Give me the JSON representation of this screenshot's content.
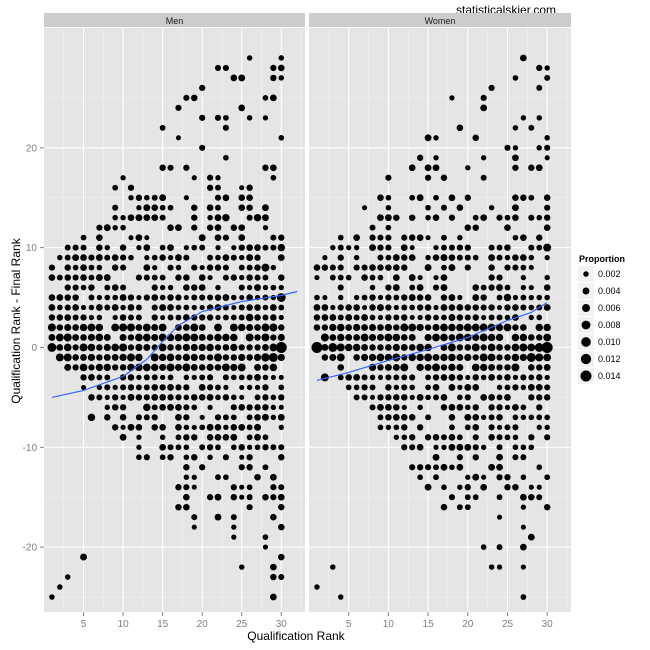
{
  "watermark": "statisticalskier.com",
  "chart_data": {
    "type": "scatter",
    "xlabel": "Qualification Rank",
    "ylabel": "Qualification Rank - Final Rank",
    "x_ticks": [
      5,
      10,
      15,
      20,
      25,
      30
    ],
    "y_ticks": [
      -20,
      -10,
      0,
      10,
      20
    ],
    "xlim": [
      0,
      33
    ],
    "ylim": [
      -26.5,
      32
    ],
    "grid": true,
    "size_legend": {
      "title": "Proportion",
      "values": [
        0.002,
        0.004,
        0.006,
        0.008,
        0.01,
        0.012,
        0.014
      ],
      "labels": [
        "0.002",
        "0.004",
        "0.006",
        "0.008",
        "0.010",
        "0.012",
        "0.014"
      ],
      "placement": "right"
    },
    "colors": {
      "panel": "#e5e5e5",
      "strip": "#cccccc",
      "grid": "#ffffff",
      "point": "#000000",
      "smooth": "#3366ff"
    },
    "panels": [
      {
        "name": "Men",
        "smooth": {
          "x": [
            1,
            5,
            10,
            13,
            15,
            17,
            20,
            25,
            30,
            32
          ],
          "y": [
            -5.0,
            -4.3,
            -2.9,
            -1.2,
            0.6,
            2.2,
            3.6,
            4.6,
            5.2,
            5.6
          ]
        },
        "big_points": [
          {
            "x": 1,
            "y": 0,
            "p": 0.008
          },
          {
            "x": 2,
            "y": -1,
            "p": 0.006
          },
          {
            "x": 3,
            "y": 1,
            "p": 0.006
          },
          {
            "x": 6,
            "y": -7,
            "p": 0.005
          },
          {
            "x": 5,
            "y": -21,
            "p": 0.004
          },
          {
            "x": 10,
            "y": 0,
            "p": 0.006
          },
          {
            "x": 23,
            "y": 13,
            "p": 0.005
          },
          {
            "x": 28,
            "y": 8,
            "p": 0.006
          },
          {
            "x": 29,
            "y": -1,
            "p": 0.008
          },
          {
            "x": 30,
            "y": 0,
            "p": 0.014
          },
          {
            "x": 30,
            "y": 5,
            "p": 0.008
          },
          {
            "x": 27,
            "y": 13,
            "p": 0.005
          },
          {
            "x": 30,
            "y": 10,
            "p": 0.005
          },
          {
            "x": 21,
            "y": 0,
            "p": 0.005
          },
          {
            "x": 17,
            "y": 1,
            "p": 0.005
          },
          {
            "x": 28,
            "y": -1,
            "p": 0.007
          },
          {
            "x": 26,
            "y": 3,
            "p": 0.005
          },
          {
            "x": 13,
            "y": -6,
            "p": 0.005
          }
        ],
        "extremes": [
          {
            "x": 30,
            "y": 29
          },
          {
            "x": 29,
            "y": 28
          },
          {
            "x": 30,
            "y": 27
          },
          {
            "x": 28,
            "y": 25
          },
          {
            "x": 25,
            "y": 24
          },
          {
            "x": 26,
            "y": 23
          },
          {
            "x": 1,
            "y": -25
          },
          {
            "x": 2,
            "y": -24
          },
          {
            "x": 3,
            "y": -23
          }
        ]
      },
      {
        "name": "Women",
        "smooth": {
          "x": [
            1,
            5,
            10,
            15,
            20,
            22,
            25,
            28,
            30
          ],
          "y": [
            -3.3,
            -2.5,
            -1.3,
            -0.2,
            1.0,
            1.7,
            2.7,
            3.5,
            4.5
          ]
        },
        "big_points": [
          {
            "x": 1,
            "y": 0,
            "p": 0.014
          },
          {
            "x": 3,
            "y": 0,
            "p": 0.008
          },
          {
            "x": 2,
            "y": 1,
            "p": 0.006
          },
          {
            "x": 2,
            "y": -3,
            "p": 0.006
          },
          {
            "x": 4,
            "y": 0,
            "p": 0.006
          },
          {
            "x": 5,
            "y": 0,
            "p": 0.005
          },
          {
            "x": 30,
            "y": 0,
            "p": 0.014
          },
          {
            "x": 29,
            "y": 0,
            "p": 0.008
          },
          {
            "x": 28,
            "y": -1,
            "p": 0.008
          },
          {
            "x": 30,
            "y": 10,
            "p": 0.006
          },
          {
            "x": 25,
            "y": 5,
            "p": 0.005
          },
          {
            "x": 22,
            "y": -1,
            "p": 0.006
          },
          {
            "x": 26,
            "y": -2,
            "p": 0.006
          },
          {
            "x": 15,
            "y": 0,
            "p": 0.005
          },
          {
            "x": 18,
            "y": -1,
            "p": 0.005
          },
          {
            "x": 27,
            "y": 0,
            "p": 0.006
          }
        ],
        "extremes": [
          {
            "x": 29,
            "y": 23
          },
          {
            "x": 30,
            "y": 21
          },
          {
            "x": 26,
            "y": 22
          },
          {
            "x": 29,
            "y": 20
          },
          {
            "x": 1,
            "y": -24
          },
          {
            "x": 4,
            "y": -25
          },
          {
            "x": 3,
            "y": -22
          }
        ]
      }
    ]
  }
}
